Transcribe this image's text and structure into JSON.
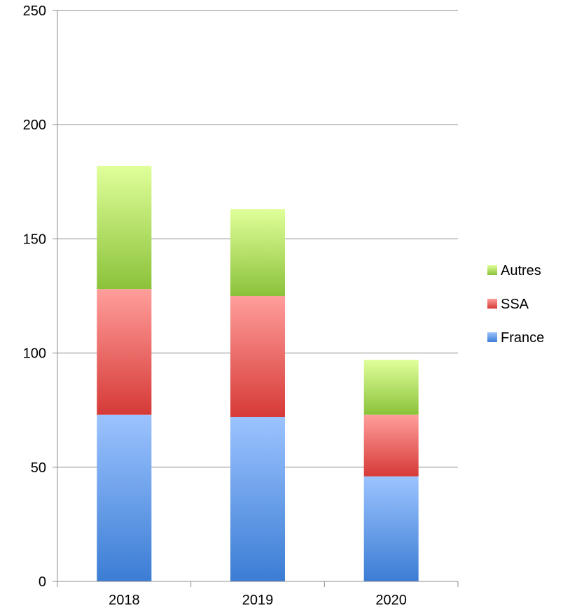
{
  "chart_data": {
    "type": "bar",
    "stacked": true,
    "categories": [
      "2018",
      "2019",
      "2020"
    ],
    "series": [
      {
        "name": "France",
        "values": [
          73,
          72,
          46
        ],
        "color_dark": "#3b7dd4",
        "color_light": "#9cc3ff"
      },
      {
        "name": "SSA",
        "values": [
          55,
          53,
          27
        ],
        "color_dark": "#d63a37",
        "color_light": "#ff9e9b"
      },
      {
        "name": "Autres",
        "values": [
          54,
          38,
          24
        ],
        "color_dark": "#8bc23a",
        "color_light": "#e0ff9a"
      }
    ],
    "y_ticks": [
      "0",
      "50",
      "100",
      "150",
      "200",
      "250"
    ],
    "ylim": [
      0,
      250
    ],
    "grid": true,
    "legend_position": "right",
    "legend_order": [
      "Autres",
      "SSA",
      "France"
    ]
  }
}
